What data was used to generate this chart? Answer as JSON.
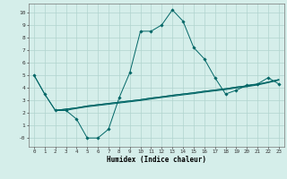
{
  "title": "",
  "xlabel": "Humidex (Indice chaleur)",
  "xlim": [
    -0.5,
    23.5
  ],
  "ylim": [
    -0.7,
    10.7
  ],
  "xticks": [
    0,
    1,
    2,
    3,
    4,
    5,
    6,
    7,
    8,
    9,
    10,
    11,
    12,
    13,
    14,
    15,
    16,
    17,
    18,
    19,
    20,
    21,
    22,
    23
  ],
  "yticks": [
    0,
    1,
    2,
    3,
    4,
    5,
    6,
    7,
    8,
    9,
    10
  ],
  "ytick_labels": [
    "-0",
    "1",
    "2",
    "3",
    "4",
    "5",
    "6",
    "7",
    "8",
    "9",
    "10"
  ],
  "bg_color": "#d5eeea",
  "grid_color": "#b0d4ce",
  "line_color": "#006666",
  "line0_x": [
    0,
    1,
    2,
    3,
    4,
    5,
    6,
    7,
    8,
    9,
    10,
    11,
    12,
    13,
    14,
    15,
    16,
    17,
    18,
    19,
    20,
    21,
    22,
    23
  ],
  "line0_y": [
    5.0,
    3.5,
    2.2,
    2.2,
    1.5,
    0.0,
    0.0,
    0.7,
    3.2,
    5.2,
    8.5,
    8.5,
    9.0,
    10.2,
    9.3,
    7.2,
    6.3,
    4.8,
    3.5,
    3.8,
    4.2,
    4.3,
    4.8,
    4.3
  ],
  "line1_x": [
    0,
    1,
    2,
    3,
    4,
    5,
    6,
    7,
    8,
    9,
    10,
    11,
    12,
    13,
    14,
    15,
    16,
    17,
    18,
    19,
    20,
    21,
    22,
    23
  ],
  "line1_y": [
    5.0,
    3.5,
    2.2,
    2.3,
    2.4,
    2.55,
    2.65,
    2.75,
    2.85,
    2.95,
    3.05,
    3.18,
    3.28,
    3.4,
    3.5,
    3.6,
    3.72,
    3.82,
    3.92,
    4.05,
    4.15,
    4.28,
    4.45,
    4.65
  ],
  "line2_x": [
    2,
    3,
    4,
    5,
    6,
    7,
    8,
    9,
    10,
    11,
    12,
    13,
    14,
    15,
    16,
    17,
    18,
    19,
    20,
    21,
    22,
    23
  ],
  "line2_y": [
    2.2,
    2.3,
    2.4,
    2.55,
    2.65,
    2.75,
    2.85,
    2.95,
    3.05,
    3.18,
    3.28,
    3.4,
    3.5,
    3.6,
    3.72,
    3.82,
    3.92,
    4.05,
    4.15,
    4.28,
    4.45,
    4.65
  ],
  "line3_x": [
    2,
    3,
    4,
    5,
    6,
    7,
    8,
    9,
    10,
    11,
    12,
    13,
    14,
    15,
    16,
    17,
    18,
    19,
    20,
    21,
    22,
    23
  ],
  "line3_y": [
    2.2,
    2.2,
    2.35,
    2.48,
    2.58,
    2.68,
    2.78,
    2.88,
    2.98,
    3.1,
    3.22,
    3.32,
    3.43,
    3.53,
    3.65,
    3.75,
    3.85,
    3.98,
    4.08,
    4.22,
    4.4,
    4.6
  ],
  "marker_x": [
    0,
    1,
    2,
    3,
    4,
    5,
    6,
    7,
    8,
    9,
    10,
    11,
    12,
    13,
    14,
    15,
    16,
    17,
    18,
    19,
    20,
    21,
    22,
    23
  ],
  "marker_y": [
    5.0,
    3.5,
    2.2,
    2.2,
    1.5,
    0.0,
    0.0,
    0.7,
    3.2,
    5.2,
    8.5,
    8.5,
    9.0,
    10.2,
    9.3,
    7.2,
    6.3,
    4.8,
    3.5,
    3.8,
    4.2,
    4.3,
    4.8,
    4.3
  ]
}
